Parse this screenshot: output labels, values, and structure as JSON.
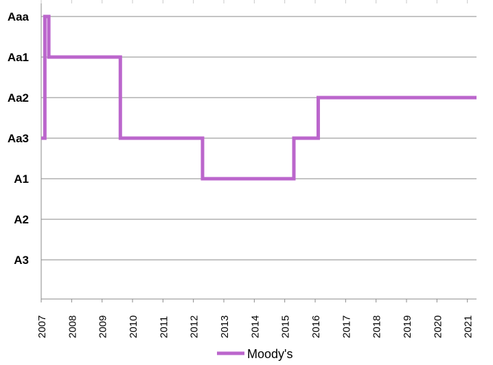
{
  "chart_data": {
    "type": "line",
    "title": "",
    "xlabel": "",
    "ylabel": "",
    "grid": true,
    "legend_position": "bottom",
    "x_ticks": [
      "2007",
      "2008",
      "2009",
      "2010",
      "2011",
      "2012",
      "2013",
      "2014",
      "2015",
      "2016",
      "2017",
      "2018",
      "2019",
      "2020",
      "2021"
    ],
    "y_categories": [
      "Aaa",
      "Aa1",
      "Aa2",
      "Aa3",
      "A1",
      "A2",
      "A3"
    ],
    "xlim": [
      2007,
      2021.3
    ],
    "series": [
      {
        "name": "Moody's",
        "color": "#bb66cc",
        "step": true,
        "points": [
          {
            "x": 2007.0,
            "rating": "Aa3"
          },
          {
            "x": 2007.12,
            "rating": "Aaa"
          },
          {
            "x": 2007.25,
            "rating": "Aa1"
          },
          {
            "x": 2009.6,
            "rating": "Aa3"
          },
          {
            "x": 2012.3,
            "rating": "A1"
          },
          {
            "x": 2015.3,
            "rating": "Aa3"
          },
          {
            "x": 2016.1,
            "rating": "Aa2"
          },
          {
            "x": 2021.3,
            "rating": "Aa2"
          }
        ]
      }
    ]
  }
}
